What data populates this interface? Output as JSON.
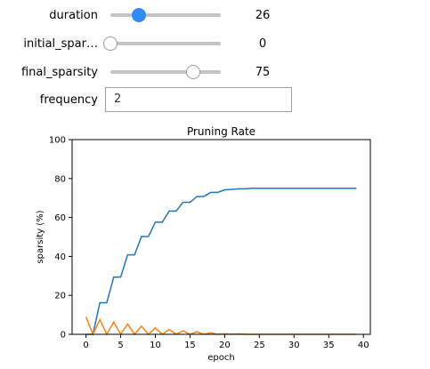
{
  "widgets": {
    "duration": {
      "label": "duration",
      "value": "26",
      "fraction": 0.26
    },
    "initial_sparsity": {
      "label": "initial_spar…",
      "value": "0",
      "fraction": 0.0
    },
    "final_sparsity": {
      "label": "final_sparsity",
      "value": "75",
      "fraction": 0.75
    },
    "frequency": {
      "label": "frequency",
      "value": "2"
    }
  },
  "colors": {
    "series_1": "#1f77b4",
    "series_2": "#ff7f0e",
    "active_handle": "#2f8cf5"
  },
  "chart_data": {
    "type": "line",
    "title": "Pruning Rate",
    "xlabel": "epoch",
    "ylabel": "sparsity (%)",
    "xlim": [
      -2,
      41
    ],
    "ylim": [
      0,
      100
    ],
    "xticks": [
      0,
      5,
      10,
      15,
      20,
      25,
      30,
      35,
      40
    ],
    "yticks": [
      0,
      20,
      40,
      60,
      80,
      100
    ],
    "x": [
      0,
      1,
      2,
      3,
      4,
      5,
      6,
      7,
      8,
      9,
      10,
      11,
      12,
      13,
      14,
      15,
      16,
      17,
      18,
      19,
      20,
      21,
      22,
      23,
      24,
      25,
      26,
      27,
      28,
      29,
      30,
      31,
      32,
      33,
      34,
      35,
      36,
      37,
      38,
      39
    ],
    "series": [
      {
        "values": [
          0,
          0,
          16.2,
          16.2,
          29.4,
          29.4,
          40.8,
          40.8,
          50.2,
          50.2,
          57.6,
          57.6,
          63.3,
          63.3,
          67.8,
          67.8,
          70.8,
          70.8,
          72.9,
          72.9,
          74.2,
          74.4,
          74.7,
          74.8,
          75,
          75,
          75,
          75,
          75,
          75,
          75,
          75,
          75,
          75,
          75,
          75,
          75,
          75,
          75,
          75
        ]
      },
      {
        "values": [
          9,
          0,
          7.5,
          0,
          6.3,
          0,
          5.3,
          0,
          4.2,
          0,
          3.3,
          0,
          2.5,
          0,
          1.8,
          0,
          1.3,
          0,
          0.8,
          0,
          0.3,
          0,
          0.2,
          0,
          0,
          0,
          0,
          0,
          0,
          0,
          0,
          0,
          0,
          0,
          0,
          0,
          0,
          0,
          0,
          0
        ]
      }
    ]
  }
}
